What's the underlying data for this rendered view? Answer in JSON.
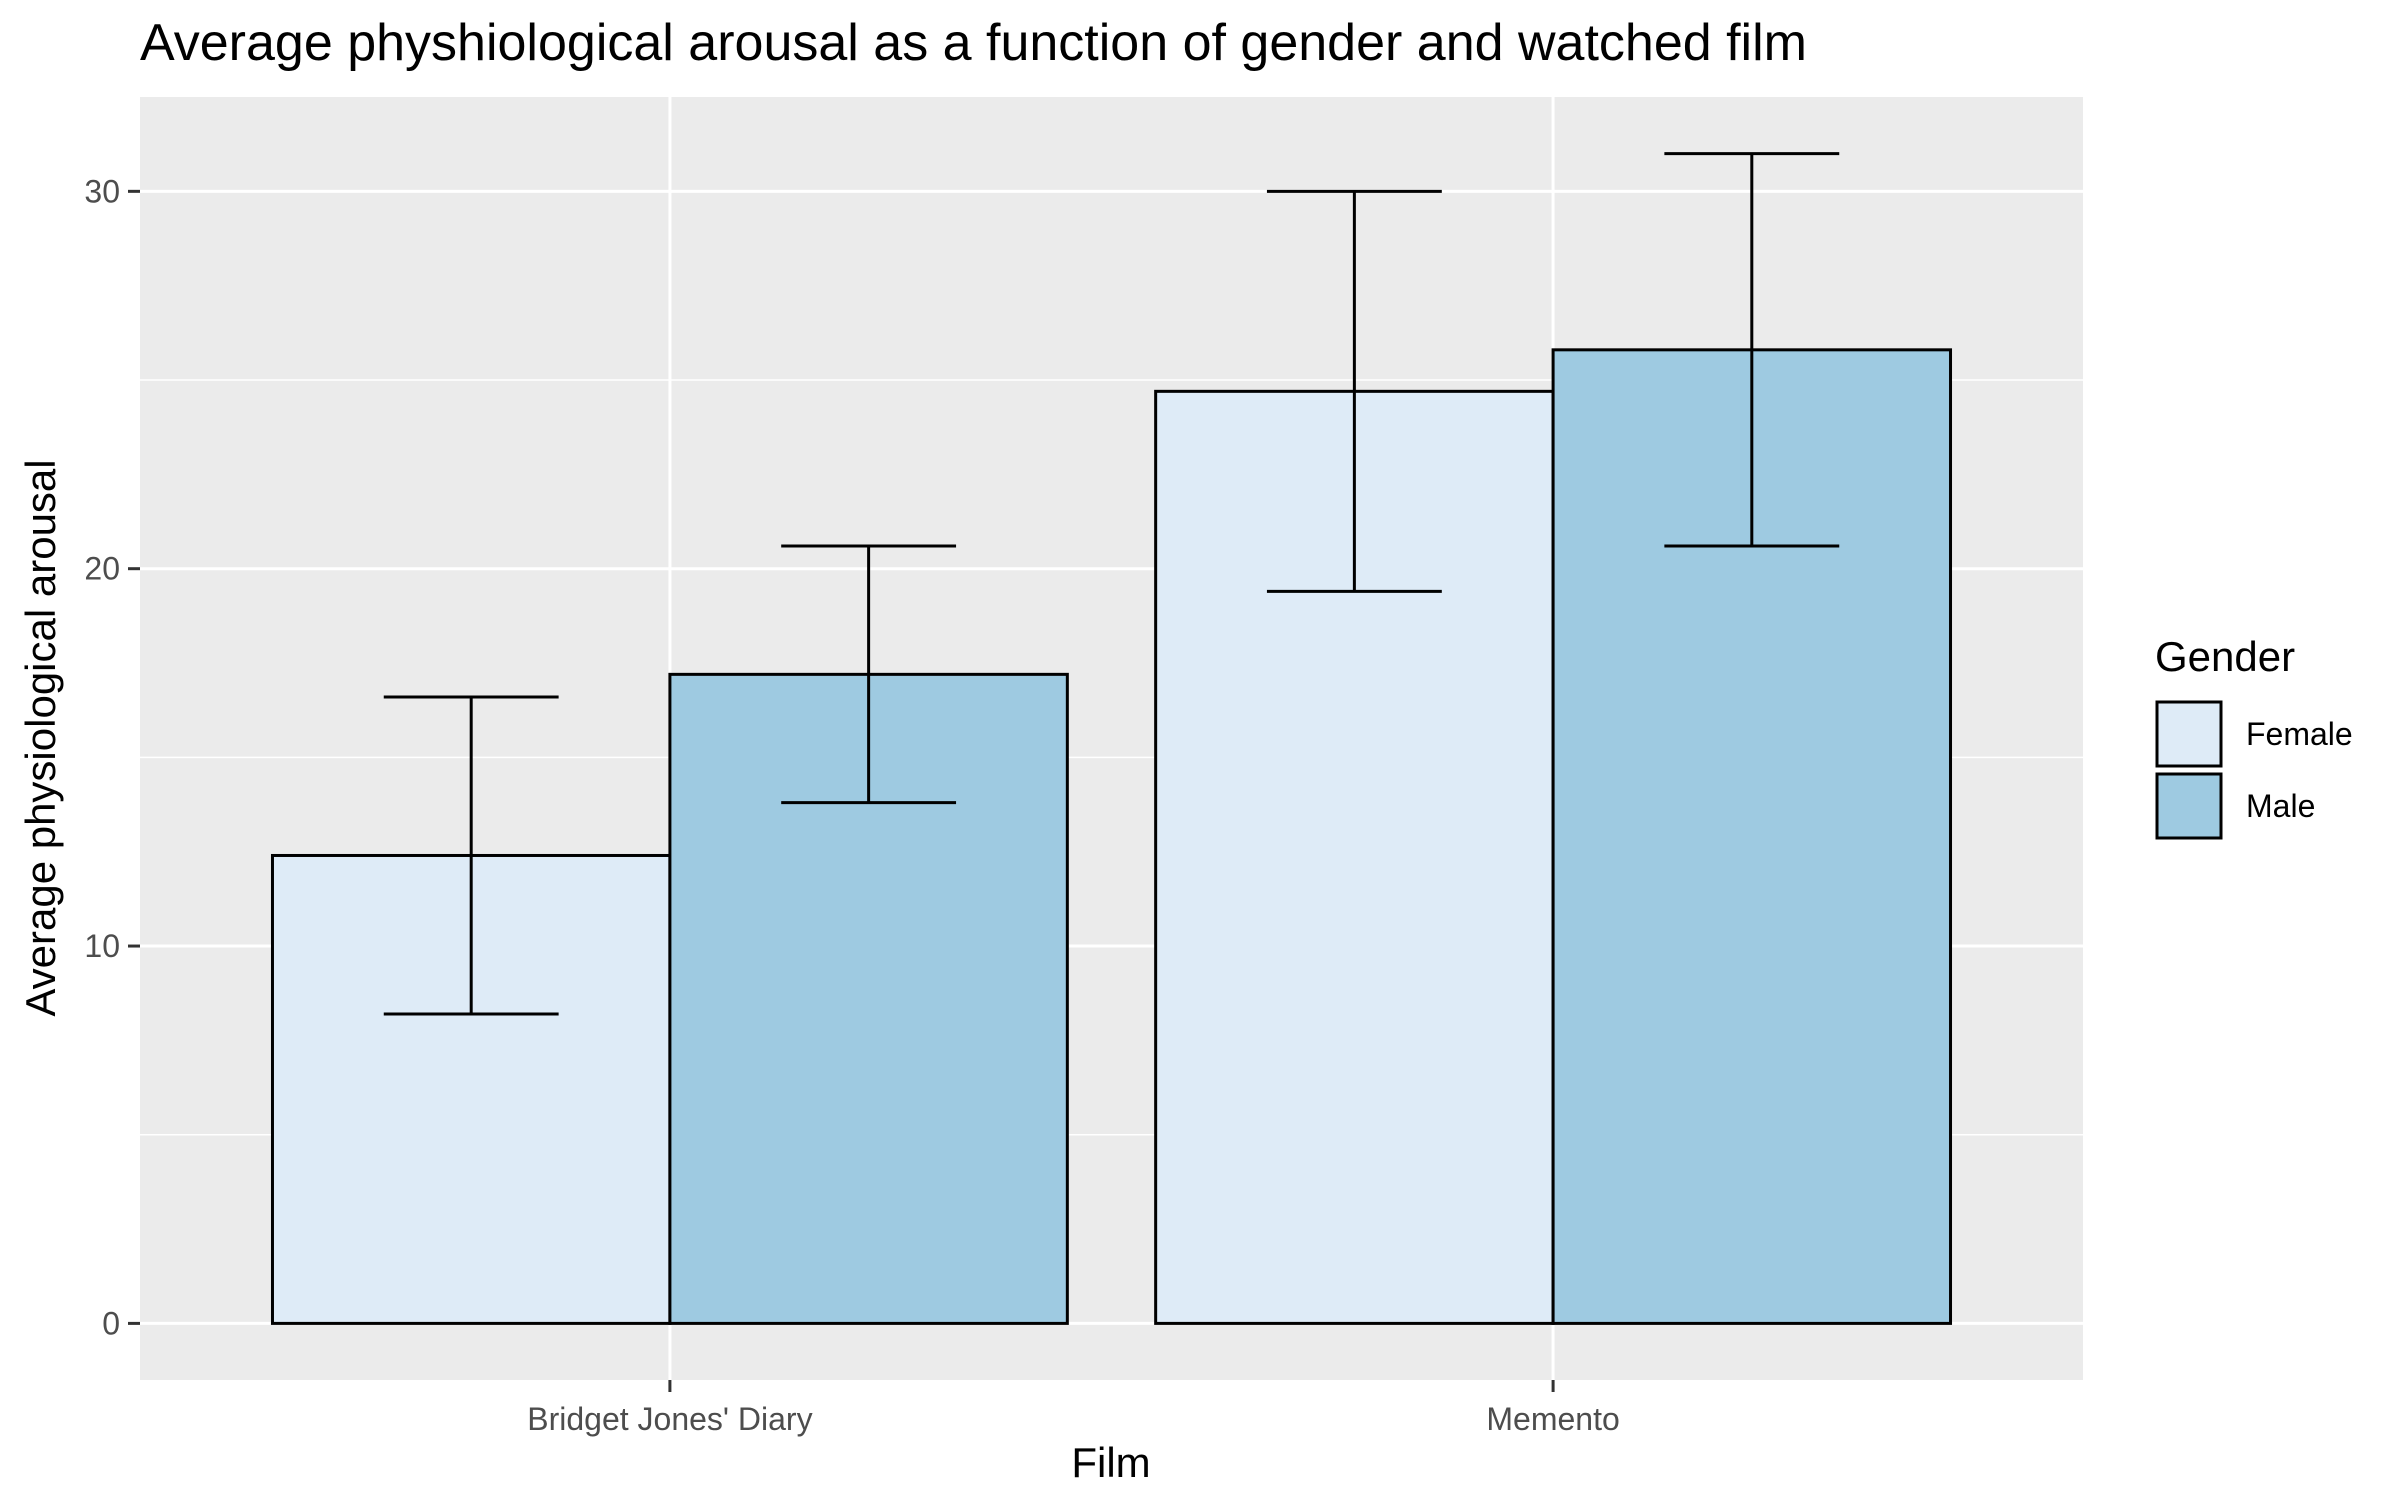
{
  "chart_data": {
    "type": "bar",
    "title": "Average physhiological arousal as a function of gender and watched film",
    "xlabel": "Film",
    "ylabel": "Average physiological arousal",
    "categories": [
      "Bridget Jones' Diary",
      "Memento"
    ],
    "series": [
      {
        "name": "Female",
        "color": "#deebf7",
        "values": [
          12.4,
          24.7
        ],
        "error_low": [
          8.2,
          19.4
        ],
        "error_high": [
          16.6,
          30.0
        ]
      },
      {
        "name": "Male",
        "color": "#9ecae1",
        "values": [
          17.2,
          25.8
        ],
        "error_low": [
          13.8,
          20.6
        ],
        "error_high": [
          20.6,
          31.0
        ]
      }
    ],
    "ylim": [
      -1.5,
      32.5
    ],
    "yticks": [
      0,
      10,
      20,
      30
    ],
    "ytick_labels": [
      "0",
      "10",
      "20",
      "30"
    ],
    "grid": true,
    "legend": {
      "title": "Gender",
      "position": "right"
    },
    "panel_background": "#ebebeb",
    "bar_outline": "#000000"
  }
}
